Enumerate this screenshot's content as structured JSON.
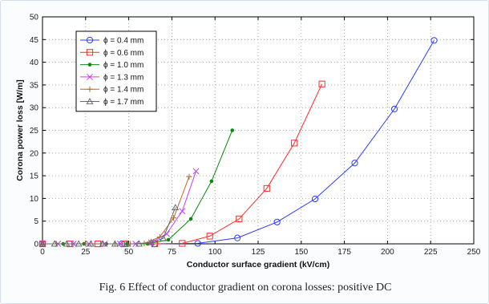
{
  "caption": "Fig. 6 Effect of conductor gradient on corona losses: positive DC",
  "chart_data": {
    "type": "line",
    "xlabel": "Conductor surface gradient (kV/cm)",
    "ylabel": "Corona power loss [W/m]",
    "xlim": [
      0,
      250
    ],
    "ylim": [
      0,
      50
    ],
    "xticks": [
      0,
      25,
      50,
      75,
      100,
      125,
      150,
      175,
      200,
      225,
      250
    ],
    "yticks": [
      0,
      5,
      10,
      15,
      20,
      25,
      30,
      35,
      40,
      45,
      50
    ],
    "grid": true,
    "legend_position": "top-left",
    "series": [
      {
        "name": "ϕ = 0.4 mm",
        "color": "#2b3bff",
        "marker": "circle",
        "x": [
          0,
          46,
          65,
          90,
          113,
          136,
          158,
          181,
          204,
          227
        ],
        "y": [
          0,
          0,
          0,
          0.1,
          1.3,
          4.8,
          9.9,
          17.8,
          29.7,
          44.8
        ]
      },
      {
        "name": "ϕ = 0.6 mm",
        "color": "#ff2a2a",
        "marker": "square",
        "x": [
          0,
          16,
          32,
          48,
          65,
          81,
          97,
          114,
          130,
          146,
          162
        ],
        "y": [
          0,
          0,
          0,
          0,
          0,
          0.1,
          1.7,
          5.5,
          12.2,
          22.2,
          35.2
        ]
      },
      {
        "name": "ϕ = 1.0 mm",
        "color": "#0a8a0a",
        "marker": "dot",
        "x": [
          0,
          12,
          24,
          37,
          49,
          61,
          73,
          86,
          98,
          110
        ],
        "y": [
          0,
          0,
          0,
          0,
          0,
          0,
          0.9,
          5.5,
          13.8,
          25
        ]
      },
      {
        "name": "ϕ = 1.3 mm",
        "color": "#c040ff",
        "marker": "x",
        "x": [
          0,
          9,
          18,
          27,
          36,
          45,
          54,
          63,
          72,
          81,
          89
        ],
        "y": [
          0,
          0,
          0,
          0,
          0,
          0,
          0,
          0.3,
          2.2,
          7.2,
          16
        ]
      },
      {
        "name": "ϕ = 1.4 mm",
        "color": "#b86a2a",
        "marker": "plus",
        "x": [
          0,
          8,
          17,
          25,
          34,
          42,
          51,
          59,
          68,
          76,
          85
        ],
        "y": [
          0,
          0,
          0,
          0,
          0,
          0,
          0,
          0.1,
          1.5,
          5.7,
          14.8
        ]
      },
      {
        "name": "ϕ = 1.7 mm",
        "color": "#6a6a6a",
        "marker": "triangle",
        "x": [
          0,
          7,
          14,
          21,
          28,
          35,
          42,
          49,
          56,
          63,
          70,
          77
        ],
        "y": [
          0,
          0,
          0,
          0,
          0,
          0,
          0,
          0,
          0,
          0.3,
          1.2,
          8
        ]
      }
    ]
  }
}
